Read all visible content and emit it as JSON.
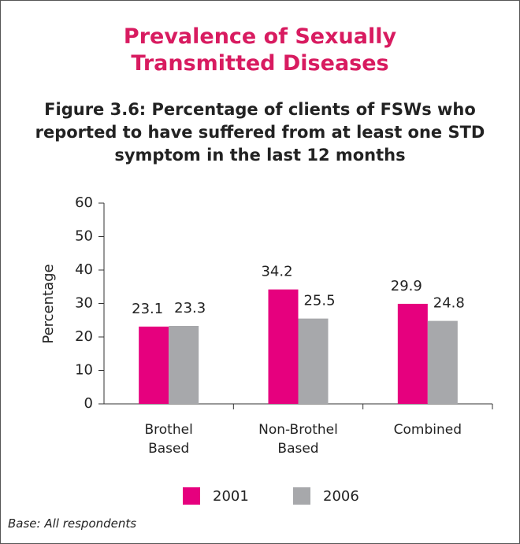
{
  "chart_data": {
    "type": "bar",
    "title": "Prevalence of Sexually Transmitted Diseases",
    "subtitle": "Figure 3.6: Percentage of clients of FSWs who reported to have suffered from at least one STD symptom in the last 12 months",
    "y_label": "Percentage",
    "categories": [
      "Brothel Based",
      "Non-Brothel Based",
      "Combined"
    ],
    "series": [
      {
        "name": "2001",
        "color": "#e6007e",
        "values": [
          23.1,
          34.2,
          29.9
        ]
      },
      {
        "name": "2006",
        "color": "#a7a8ab",
        "values": [
          23.3,
          25.5,
          24.8
        ]
      }
    ],
    "ylim": [
      0,
      60
    ],
    "yticks": [
      0,
      10,
      20,
      30,
      40,
      50,
      60
    ],
    "footnote": "Base: All respondents"
  }
}
